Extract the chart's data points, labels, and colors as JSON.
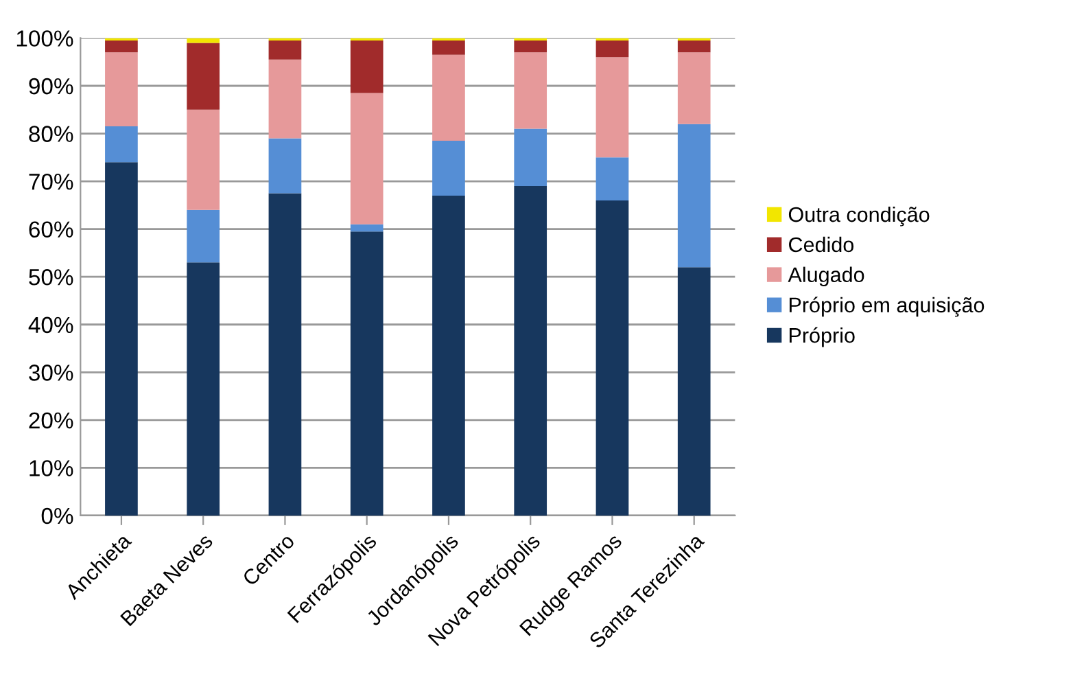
{
  "chart_data": {
    "type": "bar",
    "stacked": true,
    "categories": [
      "Anchieta",
      "Baeta Neves",
      "Centro",
      "Ferrazópolis",
      "Jordanópolis",
      "Nova Petrópolis",
      "Rudge Ramos",
      "Santa Terezinha"
    ],
    "series": [
      {
        "name": "Próprio",
        "color": "#17375e",
        "values": [
          74,
          53,
          67.5,
          59.5,
          67,
          69,
          66,
          52
        ]
      },
      {
        "name": "Próprio em aquisição",
        "color": "#558ed5",
        "values": [
          7.5,
          11,
          11.5,
          1.5,
          11.5,
          12,
          9,
          30
        ]
      },
      {
        "name": "Alugado",
        "color": "#e6999a",
        "values": [
          15.5,
          21,
          16.5,
          27.5,
          18,
          16,
          21,
          15
        ]
      },
      {
        "name": "Cedido",
        "color": "#a12b2b",
        "values": [
          2.5,
          14,
          4,
          11,
          3,
          2.5,
          3.5,
          2.5
        ]
      },
      {
        "name": "Outra condição",
        "color": "#f2e600",
        "values": [
          0.5,
          1,
          0.5,
          0.5,
          0.5,
          0.5,
          0.5,
          0.5
        ]
      }
    ],
    "ylim": [
      0,
      100
    ],
    "yticks": [
      {
        "value": 0,
        "label": "0%"
      },
      {
        "value": 10,
        "label": "10%"
      },
      {
        "value": 20,
        "label": "20%"
      },
      {
        "value": 30,
        "label": "30%"
      },
      {
        "value": 40,
        "label": "40%"
      },
      {
        "value": 50,
        "label": "50%"
      },
      {
        "value": 60,
        "label": "60%"
      },
      {
        "value": 70,
        "label": "70%"
      },
      {
        "value": 80,
        "label": "80%"
      },
      {
        "value": 90,
        "label": "90%"
      },
      {
        "value": 100,
        "label": "100%"
      }
    ],
    "grid": "y",
    "legend": "right"
  }
}
